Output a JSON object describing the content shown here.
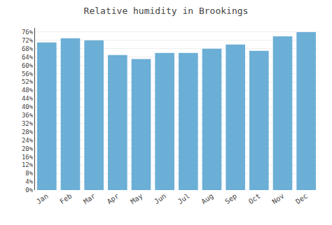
{
  "chart_data": {
    "type": "bar",
    "title": "Relative humidity in Brookings",
    "categories": [
      "Jan",
      "Feb",
      "Mar",
      "Apr",
      "May",
      "Jun",
      "Jul",
      "Aug",
      "Sep",
      "Oct",
      "Nov",
      "Dec"
    ],
    "values": [
      71,
      73,
      72,
      65,
      63,
      66,
      66,
      68,
      70,
      67,
      74,
      76
    ],
    "color": "#6baed6",
    "ylim": [
      0,
      78
    ],
    "yticks": [
      {
        "value": 0,
        "label": "0%"
      },
      {
        "value": 4,
        "label": "4%"
      },
      {
        "value": 8,
        "label": "8%"
      },
      {
        "value": 12,
        "label": "12%"
      },
      {
        "value": 16,
        "label": "16%"
      },
      {
        "value": 20,
        "label": "20%"
      },
      {
        "value": 24,
        "label": "24%"
      },
      {
        "value": 28,
        "label": "28%"
      },
      {
        "value": 32,
        "label": "32%"
      },
      {
        "value": 36,
        "label": "36%"
      },
      {
        "value": 40,
        "label": "40%"
      },
      {
        "value": 44,
        "label": "44%"
      },
      {
        "value": 48,
        "label": "48%"
      },
      {
        "value": 52,
        "label": "52%"
      },
      {
        "value": 56,
        "label": "56%"
      },
      {
        "value": 60,
        "label": "60%"
      },
      {
        "value": 64,
        "label": "64%"
      },
      {
        "value": 68,
        "label": "68%"
      },
      {
        "value": 72,
        "label": "72%"
      },
      {
        "value": 76,
        "label": "76%"
      }
    ],
    "grid": true
  }
}
